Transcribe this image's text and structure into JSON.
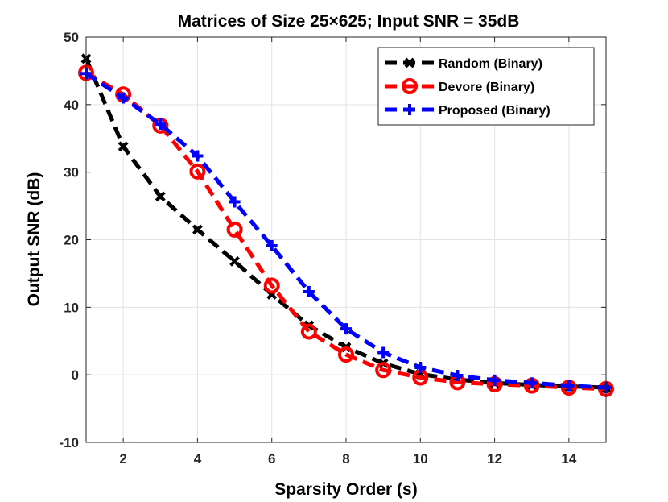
{
  "chart_data": {
    "type": "line",
    "title": "Matrices of Size 25×625; Input SNR = 35dB",
    "xlabel": "Sparsity Order (s)",
    "ylabel": "Output SNR (dB)",
    "xlim": [
      1,
      15
    ],
    "ylim": [
      -10,
      50
    ],
    "xticks": [
      2,
      4,
      6,
      8,
      10,
      12,
      14
    ],
    "yticks": [
      -10,
      0,
      10,
      20,
      30,
      40,
      50
    ],
    "grid": true,
    "legend_position": "top-right",
    "x": [
      1,
      2,
      3,
      4,
      5,
      6,
      7,
      8,
      9,
      10,
      11,
      12,
      13,
      14,
      15
    ],
    "series": [
      {
        "name": "Random (Binary)",
        "color": "#000000",
        "marker": "x",
        "values": [
          46.8,
          33.8,
          26.4,
          21.5,
          16.8,
          11.9,
          7.3,
          4.1,
          1.7,
          0.1,
          -0.7,
          -1.2,
          -1.5,
          -1.7,
          -1.9
        ]
      },
      {
        "name": "Devore (Binary)",
        "color": "#ff0000",
        "marker": "o",
        "values": [
          44.7,
          41.5,
          36.9,
          30.1,
          21.5,
          13.2,
          6.4,
          3.0,
          0.7,
          -0.4,
          -1.1,
          -1.4,
          -1.6,
          -1.9,
          -2.1
        ]
      },
      {
        "name": "Proposed (Binary)",
        "color": "#0000ff",
        "marker": "+",
        "values": [
          44.6,
          41.0,
          37.1,
          32.4,
          25.6,
          19.1,
          12.3,
          6.8,
          3.3,
          1.1,
          -0.1,
          -0.8,
          -1.2,
          -1.6,
          -1.9
        ]
      }
    ]
  }
}
